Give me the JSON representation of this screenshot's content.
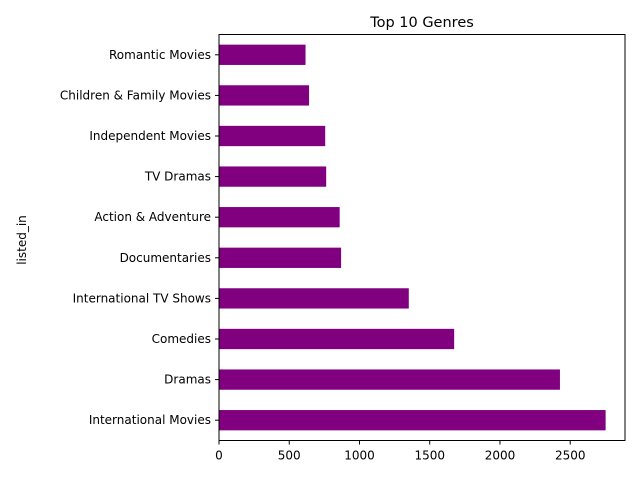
{
  "chart_data": {
    "type": "bar",
    "orientation": "horizontal",
    "title": "Top 10 Genres",
    "xlabel": "",
    "ylabel": "listed_in",
    "categories": [
      "International Movies",
      "Dramas",
      "Comedies",
      "International TV Shows",
      "Documentaries",
      "Action & Adventure",
      "TV Dramas",
      "Independent Movies",
      "Children & Family Movies",
      "Romantic Movies"
    ],
    "values": [
      2752,
      2427,
      1674,
      1351,
      869,
      859,
      763,
      756,
      641,
      616
    ],
    "xlim": [
      0,
      2890
    ],
    "xticks": [
      0,
      500,
      1000,
      1500,
      2000,
      2500
    ],
    "bar_color": "#800080",
    "grid": false,
    "legend": "none"
  }
}
